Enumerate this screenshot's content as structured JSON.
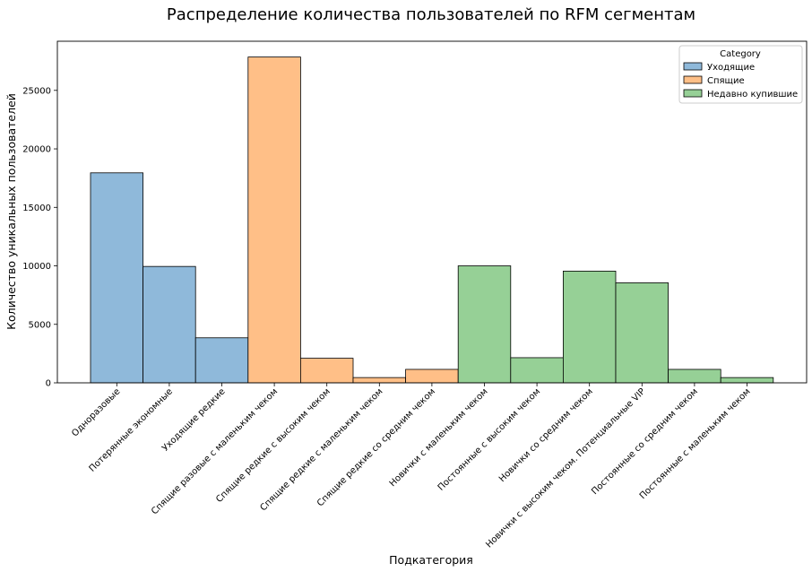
{
  "chart_data": {
    "type": "bar",
    "title": "Распределение количества пользователей по RFM сегментам",
    "xlabel": "Подкатегория",
    "ylabel": "Количество уникальных пользователей",
    "ylim": [
      0,
      29200
    ],
    "yticks": [
      0,
      5000,
      10000,
      15000,
      20000,
      25000
    ],
    "grid": false,
    "legend": {
      "title": "Category",
      "placement": "top-right",
      "entries": [
        "Уходящие",
        "Спящие",
        "Недавно купившие"
      ]
    },
    "categories": [
      "Одноразовые",
      "Потерянные экономные",
      "Уходящие редкие",
      "Спящие разовые с маленьким чеком",
      "Спящие редкие с высоким чеком",
      "Спящие редкие с маленьким чеком",
      "Спящие редкие со средним чеком",
      "Новички с маленьким чеком",
      "Постоянные с высоким чеком",
      "Новички со средним чеком",
      "Новички с высоким чеком. Потенциальные VIP",
      "Постоянные со средним чеком",
      "Постоянные с маленьким чеком"
    ],
    "series": [
      {
        "name": "Уходящие",
        "color": "#8fb9da",
        "values": [
          17950,
          9950,
          3850,
          null,
          null,
          null,
          null,
          null,
          null,
          null,
          null,
          null,
          null
        ]
      },
      {
        "name": "Спящие",
        "color": "#ffbf87",
        "values": [
          null,
          null,
          null,
          27850,
          2100,
          450,
          1150,
          null,
          null,
          null,
          null,
          null,
          null
        ]
      },
      {
        "name": "Недавно купившие",
        "color": "#96d096",
        "values": [
          null,
          null,
          null,
          null,
          null,
          null,
          null,
          10000,
          2150,
          9550,
          8550,
          1150,
          450
        ]
      }
    ]
  }
}
